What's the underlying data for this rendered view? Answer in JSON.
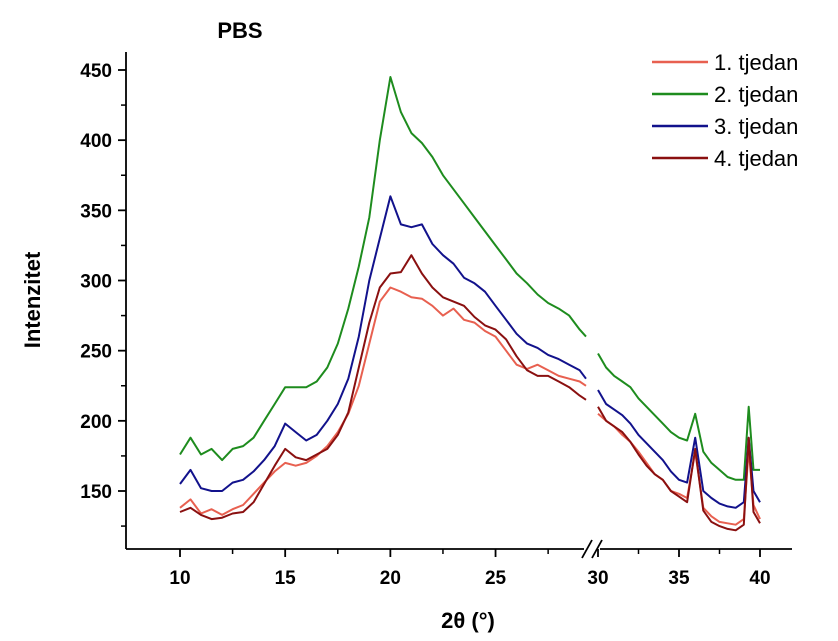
{
  "chart_data": {
    "type": "line",
    "title": "PBS",
    "xlabel": "2θ (°)",
    "ylabel": "Intenzitet",
    "xlim": [
      8,
      41
    ],
    "ylim": [
      115,
      460
    ],
    "x_axis_break": [
      29.3,
      30
    ],
    "x_ticks": [
      10,
      15,
      20,
      25,
      30,
      35,
      40
    ],
    "y_ticks": [
      150,
      200,
      250,
      300,
      350,
      400,
      450
    ],
    "grid": false,
    "legend_position": "top-right",
    "x_break": 29.3,
    "series": [
      {
        "name": "1. tjedan",
        "color": "#e86050",
        "points": [
          [
            10,
            138
          ],
          [
            10.5,
            144
          ],
          [
            11,
            134
          ],
          [
            11.5,
            137
          ],
          [
            12,
            133
          ],
          [
            12.5,
            137
          ],
          [
            13,
            140
          ],
          [
            13.5,
            148
          ],
          [
            14,
            156
          ],
          [
            14.5,
            164
          ],
          [
            15,
            170
          ],
          [
            15.5,
            168
          ],
          [
            16,
            170
          ],
          [
            16.5,
            175
          ],
          [
            17,
            182
          ],
          [
            17.5,
            192
          ],
          [
            18,
            205
          ],
          [
            18.5,
            225
          ],
          [
            19,
            255
          ],
          [
            19.5,
            285
          ],
          [
            20,
            295
          ],
          [
            20.5,
            292
          ],
          [
            21,
            288
          ],
          [
            21.5,
            287
          ],
          [
            22,
            282
          ],
          [
            22.5,
            275
          ],
          [
            23,
            280
          ],
          [
            23.5,
            272
          ],
          [
            24,
            270
          ],
          [
            24.5,
            264
          ],
          [
            25,
            260
          ],
          [
            25.5,
            250
          ],
          [
            26,
            240
          ],
          [
            26.5,
            237
          ],
          [
            27,
            240
          ],
          [
            27.5,
            236
          ],
          [
            28,
            232
          ],
          [
            28.5,
            230
          ],
          [
            29,
            228
          ],
          [
            29.3,
            225
          ],
          [
            30,
            205
          ],
          [
            30.5,
            200
          ],
          [
            31,
            196
          ],
          [
            31.5,
            190
          ],
          [
            32,
            185
          ],
          [
            32.5,
            178
          ],
          [
            33,
            170
          ],
          [
            33.5,
            162
          ],
          [
            34,
            158
          ],
          [
            34.5,
            150
          ],
          [
            35,
            148
          ],
          [
            35.5,
            145
          ],
          [
            36,
            178
          ],
          [
            36.5,
            138
          ],
          [
            37,
            132
          ],
          [
            37.5,
            128
          ],
          [
            38,
            127
          ],
          [
            38.5,
            126
          ],
          [
            39,
            130
          ],
          [
            39.3,
            180
          ],
          [
            39.6,
            140
          ],
          [
            40,
            130
          ]
        ]
      },
      {
        "name": "2. tjedan",
        "color": "#1e8c1e",
        "points": [
          [
            10,
            176
          ],
          [
            10.5,
            188
          ],
          [
            11,
            176
          ],
          [
            11.5,
            180
          ],
          [
            12,
            172
          ],
          [
            12.5,
            180
          ],
          [
            13,
            182
          ],
          [
            13.5,
            188
          ],
          [
            14,
            200
          ],
          [
            14.5,
            212
          ],
          [
            15,
            224
          ],
          [
            15.5,
            224
          ],
          [
            16,
            224
          ],
          [
            16.5,
            228
          ],
          [
            17,
            238
          ],
          [
            17.5,
            255
          ],
          [
            18,
            280
          ],
          [
            18.5,
            310
          ],
          [
            19,
            345
          ],
          [
            19.5,
            400
          ],
          [
            20,
            445
          ],
          [
            20.5,
            420
          ],
          [
            21,
            405
          ],
          [
            21.5,
            398
          ],
          [
            22,
            388
          ],
          [
            22.5,
            375
          ],
          [
            23,
            365
          ],
          [
            23.5,
            355
          ],
          [
            24,
            345
          ],
          [
            24.5,
            335
          ],
          [
            25,
            325
          ],
          [
            25.5,
            315
          ],
          [
            26,
            305
          ],
          [
            26.5,
            298
          ],
          [
            27,
            290
          ],
          [
            27.5,
            284
          ],
          [
            28,
            280
          ],
          [
            28.5,
            275
          ],
          [
            29,
            265
          ],
          [
            29.3,
            260
          ],
          [
            30,
            248
          ],
          [
            30.5,
            238
          ],
          [
            31,
            232
          ],
          [
            31.5,
            228
          ],
          [
            32,
            224
          ],
          [
            32.5,
            216
          ],
          [
            33,
            210
          ],
          [
            33.5,
            204
          ],
          [
            34,
            198
          ],
          [
            34.5,
            192
          ],
          [
            35,
            188
          ],
          [
            35.5,
            186
          ],
          [
            36,
            205
          ],
          [
            36.5,
            178
          ],
          [
            37,
            170
          ],
          [
            37.5,
            165
          ],
          [
            38,
            160
          ],
          [
            38.5,
            158
          ],
          [
            39,
            158
          ],
          [
            39.3,
            210
          ],
          [
            39.6,
            165
          ],
          [
            40,
            165
          ]
        ]
      },
      {
        "name": "3. tjedan",
        "color": "#12128c",
        "points": [
          [
            10,
            155
          ],
          [
            10.5,
            165
          ],
          [
            11,
            152
          ],
          [
            11.5,
            150
          ],
          [
            12,
            150
          ],
          [
            12.5,
            156
          ],
          [
            13,
            158
          ],
          [
            13.5,
            164
          ],
          [
            14,
            172
          ],
          [
            14.5,
            182
          ],
          [
            15,
            198
          ],
          [
            15.5,
            192
          ],
          [
            16,
            186
          ],
          [
            16.5,
            190
          ],
          [
            17,
            200
          ],
          [
            17.5,
            212
          ],
          [
            18,
            230
          ],
          [
            18.5,
            260
          ],
          [
            19,
            300
          ],
          [
            19.5,
            330
          ],
          [
            20,
            360
          ],
          [
            20.5,
            340
          ],
          [
            21,
            338
          ],
          [
            21.5,
            340
          ],
          [
            22,
            326
          ],
          [
            22.5,
            318
          ],
          [
            23,
            312
          ],
          [
            23.5,
            302
          ],
          [
            24,
            298
          ],
          [
            24.5,
            292
          ],
          [
            25,
            282
          ],
          [
            25.5,
            272
          ],
          [
            26,
            262
          ],
          [
            26.5,
            255
          ],
          [
            27,
            252
          ],
          [
            27.5,
            247
          ],
          [
            28,
            244
          ],
          [
            28.5,
            240
          ],
          [
            29,
            236
          ],
          [
            29.3,
            230
          ],
          [
            30,
            222
          ],
          [
            30.5,
            212
          ],
          [
            31,
            208
          ],
          [
            31.5,
            204
          ],
          [
            32,
            198
          ],
          [
            32.5,
            190
          ],
          [
            33,
            184
          ],
          [
            33.5,
            178
          ],
          [
            34,
            172
          ],
          [
            34.5,
            164
          ],
          [
            35,
            158
          ],
          [
            35.5,
            156
          ],
          [
            36,
            188
          ],
          [
            36.5,
            150
          ],
          [
            37,
            145
          ],
          [
            37.5,
            141
          ],
          [
            38,
            139
          ],
          [
            38.5,
            138
          ],
          [
            39,
            142
          ],
          [
            39.3,
            188
          ],
          [
            39.6,
            150
          ],
          [
            40,
            142
          ]
        ]
      },
      {
        "name": "4. tjedan",
        "color": "#8a1010",
        "points": [
          [
            10,
            135
          ],
          [
            10.5,
            138
          ],
          [
            11,
            133
          ],
          [
            11.5,
            130
          ],
          [
            12,
            131
          ],
          [
            12.5,
            134
          ],
          [
            13,
            135
          ],
          [
            13.5,
            142
          ],
          [
            14,
            155
          ],
          [
            14.5,
            168
          ],
          [
            15,
            180
          ],
          [
            15.5,
            174
          ],
          [
            16,
            172
          ],
          [
            16.5,
            176
          ],
          [
            17,
            180
          ],
          [
            17.5,
            190
          ],
          [
            18,
            206
          ],
          [
            18.5,
            238
          ],
          [
            19,
            270
          ],
          [
            19.5,
            295
          ],
          [
            20,
            305
          ],
          [
            20.5,
            306
          ],
          [
            21,
            318
          ],
          [
            21.5,
            305
          ],
          [
            22,
            295
          ],
          [
            22.5,
            288
          ],
          [
            23,
            285
          ],
          [
            23.5,
            282
          ],
          [
            24,
            274
          ],
          [
            24.5,
            268
          ],
          [
            25,
            265
          ],
          [
            25.5,
            258
          ],
          [
            26,
            246
          ],
          [
            26.5,
            236
          ],
          [
            27,
            232
          ],
          [
            27.5,
            232
          ],
          [
            28,
            228
          ],
          [
            28.5,
            224
          ],
          [
            29,
            218
          ],
          [
            29.3,
            215
          ],
          [
            30,
            210
          ],
          [
            30.5,
            200
          ],
          [
            31,
            196
          ],
          [
            31.5,
            192
          ],
          [
            32,
            185
          ],
          [
            32.5,
            176
          ],
          [
            33,
            168
          ],
          [
            33.5,
            162
          ],
          [
            34,
            158
          ],
          [
            34.5,
            150
          ],
          [
            35,
            146
          ],
          [
            35.5,
            142
          ],
          [
            36,
            180
          ],
          [
            36.5,
            136
          ],
          [
            37,
            128
          ],
          [
            37.5,
            125
          ],
          [
            38,
            123
          ],
          [
            38.5,
            122
          ],
          [
            39,
            126
          ],
          [
            39.3,
            188
          ],
          [
            39.6,
            135
          ],
          [
            40,
            127
          ]
        ]
      }
    ]
  }
}
